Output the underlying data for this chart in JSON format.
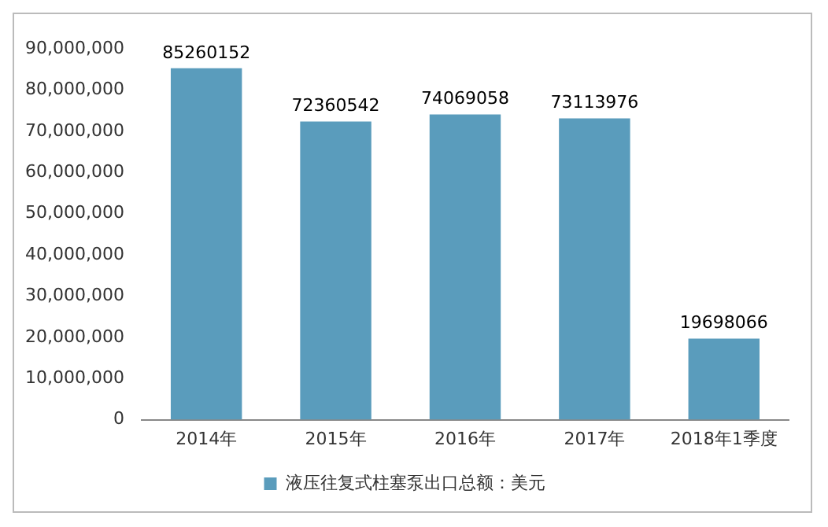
{
  "chart_data": {
    "type": "bar",
    "categories": [
      "2014年",
      "2015年",
      "2016年",
      "2017年",
      "2018年1季度"
    ],
    "series": [
      {
        "name": "液压往复式柱塞泵出口总额：美元",
        "color": "#5a9cbc",
        "values": [
          85260152,
          72360542,
          74069058,
          73113976,
          19698066
        ]
      }
    ],
    "ylim": [
      0,
      90000000
    ],
    "yticks": [
      {
        "value": 0,
        "label": "0"
      },
      {
        "value": 10000000,
        "label": "10,000,000"
      },
      {
        "value": 20000000,
        "label": "20,000,000"
      },
      {
        "value": 30000000,
        "label": "30,000,000"
      },
      {
        "value": 40000000,
        "label": "40,000,000"
      },
      {
        "value": 50000000,
        "label": "50,000,000"
      },
      {
        "value": 60000000,
        "label": "60,000,000"
      },
      {
        "value": 70000000,
        "label": "70,000,000"
      },
      {
        "value": 80000000,
        "label": "80,000,000"
      },
      {
        "value": 90000000,
        "label": "90,000,000"
      }
    ],
    "grid": false,
    "legend": "bottom",
    "data_labels": true
  }
}
